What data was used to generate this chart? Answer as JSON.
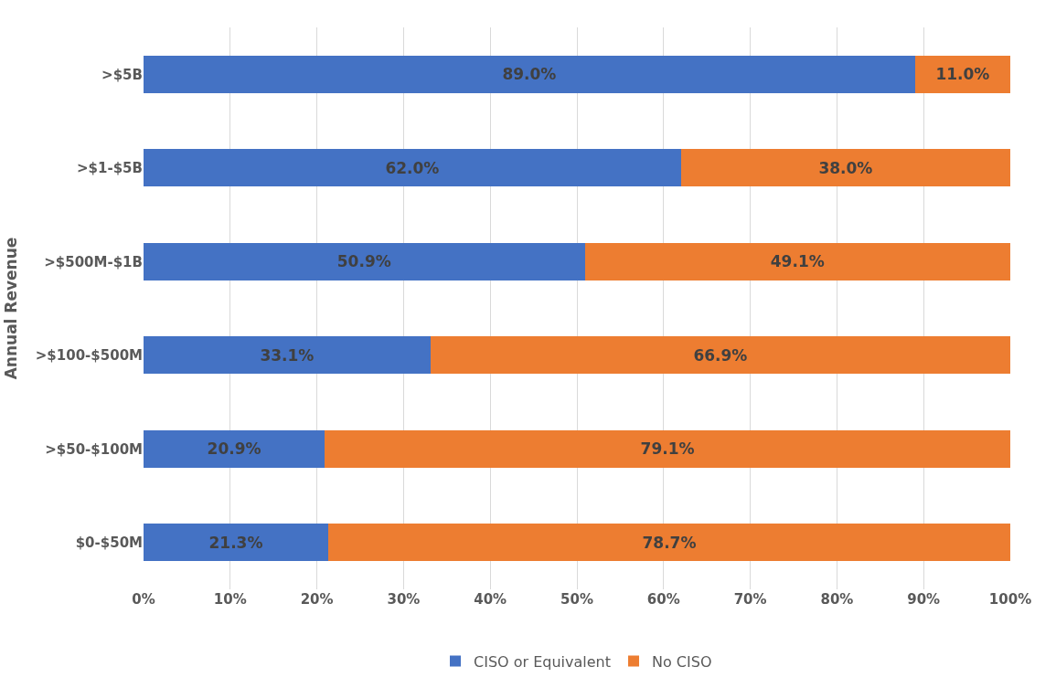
{
  "chart_data": {
    "type": "bar",
    "orientation": "horizontal",
    "stacked": true,
    "ylabel": "Annual Revenue",
    "categories": [
      ">$5B",
      ">$1-$5B",
      ">$500M-$1B",
      ">$100-$500M",
      ">$50-$100M",
      "$0-$50M"
    ],
    "series": [
      {
        "name": "CISO or Equivalent",
        "color": "#4472c4",
        "values": [
          89.0,
          62.0,
          50.9,
          33.1,
          20.9,
          21.3
        ],
        "value_labels": [
          "89.0%",
          "62.0%",
          "50.9%",
          "33.1%",
          "20.9%",
          "21.3%"
        ]
      },
      {
        "name": "No CISO",
        "color": "#ed7d31",
        "values": [
          11.0,
          38.0,
          49.1,
          66.9,
          79.1,
          78.7
        ],
        "value_labels": [
          "11.0%",
          "38.0%",
          "49.1%",
          "66.9%",
          "79.1%",
          "78.7%"
        ]
      }
    ],
    "xlim": [
      0,
      100
    ],
    "xticks": [
      {
        "value": 0,
        "label": "0%"
      },
      {
        "value": 10,
        "label": "10%"
      },
      {
        "value": 20,
        "label": "20%"
      },
      {
        "value": 30,
        "label": "30%"
      },
      {
        "value": 40,
        "label": "40%"
      },
      {
        "value": 50,
        "label": "50%"
      },
      {
        "value": 60,
        "label": "60%"
      },
      {
        "value": 70,
        "label": "70%"
      },
      {
        "value": 80,
        "label": "80%"
      },
      {
        "value": 90,
        "label": "90%"
      },
      {
        "value": 100,
        "label": "100%"
      }
    ],
    "grid": "x",
    "legend": "bottom"
  }
}
